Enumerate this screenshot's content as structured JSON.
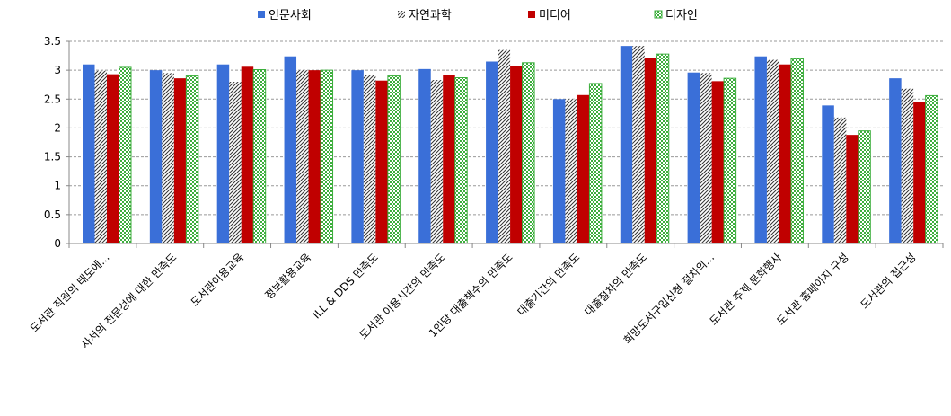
{
  "chart_data": {
    "type": "bar",
    "title": "",
    "xlabel": "",
    "ylabel": "",
    "ylim": [
      0,
      3.5
    ],
    "yticks": [
      "0",
      "0.5",
      "1",
      "1.5",
      "2",
      "2.5",
      "3",
      "3.5"
    ],
    "grid": true,
    "legend_position": "top",
    "categories": [
      "도서관 직원의 태도에...",
      "사서의 전문성에 대한 만족도",
      "도서관이용교육",
      "정보활용교육",
      "ILL & DDS 만족도",
      "도서관 이용시간의 만족도",
      "1인당 대출책수의 만족도",
      "대출기간의 만족도",
      "대출절차의 만족도",
      "희망도서구입신청 절차의...",
      "도서관 주제 문화행사",
      "도서관 홈페이지 구성",
      "도서관의 접근성"
    ],
    "series": [
      {
        "name": "인문사회",
        "color": "#3a6fd8",
        "pattern": "solid",
        "values": [
          3.1,
          3.0,
          3.1,
          3.24,
          3.0,
          3.02,
          3.15,
          2.5,
          3.42,
          2.96,
          3.24,
          2.39,
          2.86
        ]
      },
      {
        "name": "자연과학",
        "color": "#333333",
        "pattern": "diagonal",
        "values": [
          2.99,
          2.95,
          2.8,
          3.0,
          2.91,
          2.83,
          3.35,
          2.5,
          3.42,
          2.95,
          3.18,
          2.18,
          2.68
        ]
      },
      {
        "name": "미디어",
        "color": "#c00000",
        "pattern": "solid",
        "values": [
          2.93,
          2.86,
          3.06,
          3.0,
          2.82,
          2.92,
          3.07,
          2.57,
          3.22,
          2.81,
          3.1,
          1.88,
          2.45
        ]
      },
      {
        "name": "디자인",
        "color": "#3cae3c",
        "pattern": "checker",
        "values": [
          3.05,
          2.9,
          3.01,
          3.0,
          2.9,
          2.87,
          3.13,
          2.77,
          3.28,
          2.86,
          3.2,
          1.95,
          2.56
        ]
      }
    ]
  }
}
